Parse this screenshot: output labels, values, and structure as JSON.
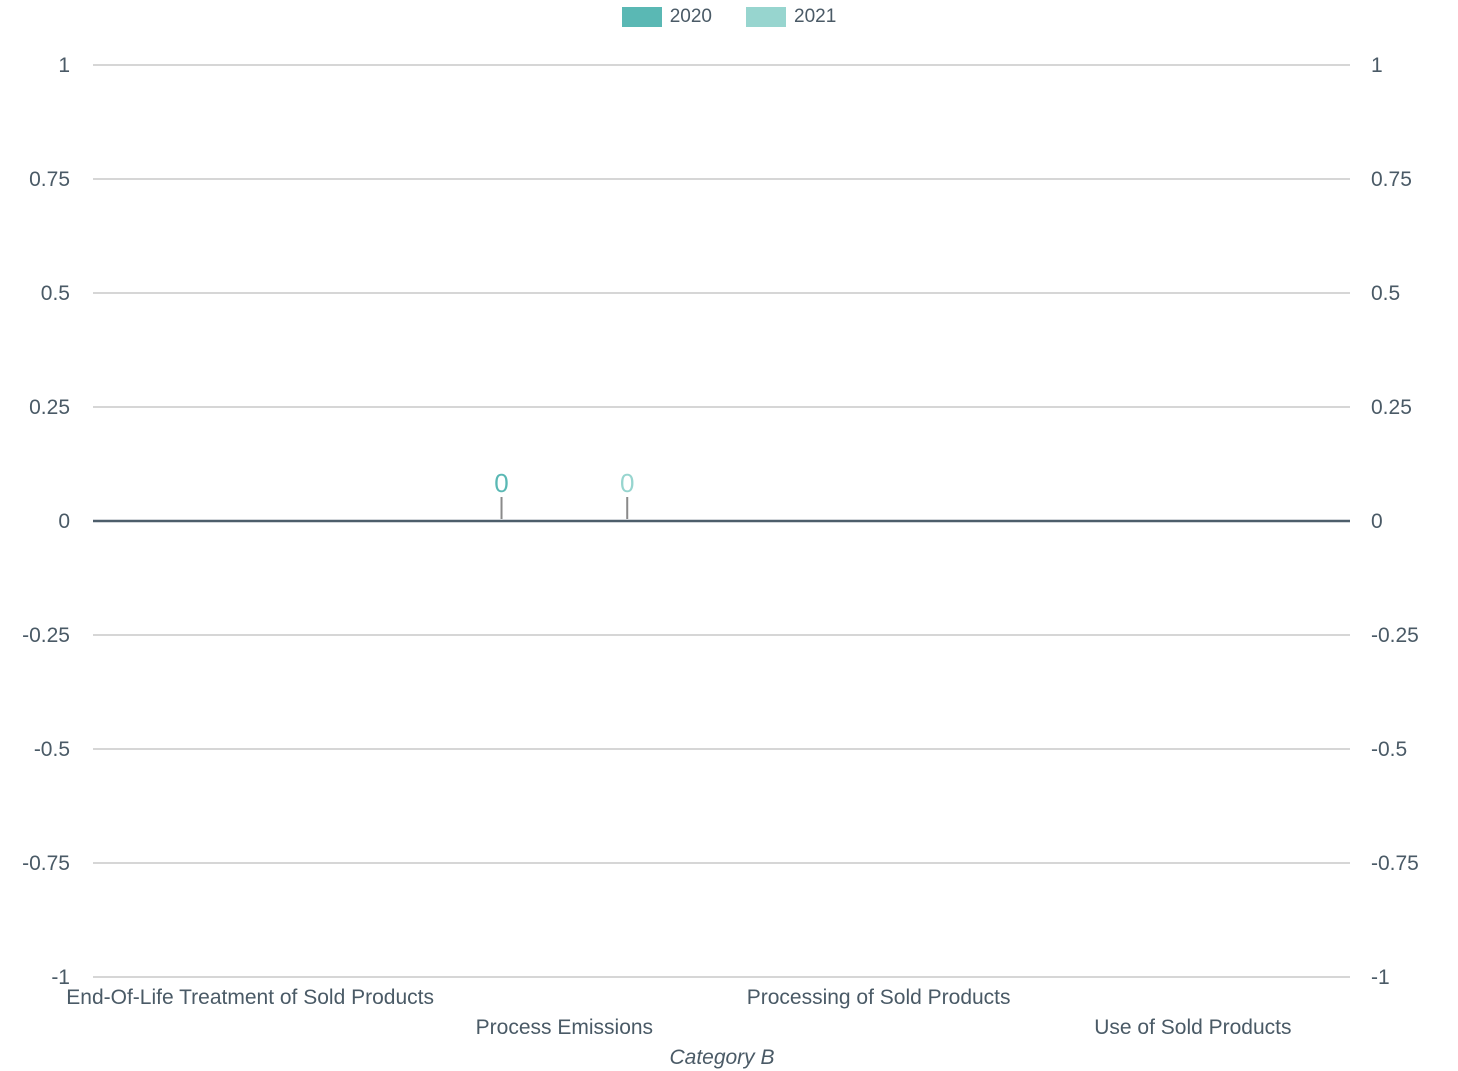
{
  "chart_data": {
    "type": "bar",
    "categories": [
      "End-Of-Life Treatment of Sold Products",
      "Process Emissions",
      "Processing of Sold Products",
      "Use of Sold Products"
    ],
    "series": [
      {
        "name": "2020",
        "color": "#5ab8b4",
        "values": [
          null,
          0,
          null,
          null
        ]
      },
      {
        "name": "2021",
        "color": "#97d5cf",
        "values": [
          null,
          0,
          null,
          null
        ]
      }
    ],
    "data_labels": [
      {
        "series": "2020",
        "category": "Process Emissions",
        "text": "0"
      },
      {
        "series": "2021",
        "category": "Process Emissions",
        "text": "0"
      }
    ],
    "ylim": [
      -1,
      1
    ],
    "yticks": [
      1,
      0.75,
      0.5,
      0.25,
      0,
      -0.25,
      -0.5,
      -0.75,
      -1
    ],
    "ytick_labels": [
      "1",
      "0.75",
      "0.5",
      "0.25",
      "0",
      "-0.25",
      "-0.5",
      "-0.75",
      "-1"
    ],
    "secondary_yticks": [
      "1",
      "0.75",
      "0.5",
      "0.25",
      "0",
      "-0.25",
      "-0.5",
      "-0.75",
      "-1"
    ],
    "xlabel": "Category B",
    "ylabel": "",
    "grid": true,
    "legend": "top-center",
    "colors": {
      "text": "#4a5a66",
      "grid": "#d6d6d6",
      "zero_line": "#4d5e6b",
      "leader": "#8a8a8a"
    }
  }
}
